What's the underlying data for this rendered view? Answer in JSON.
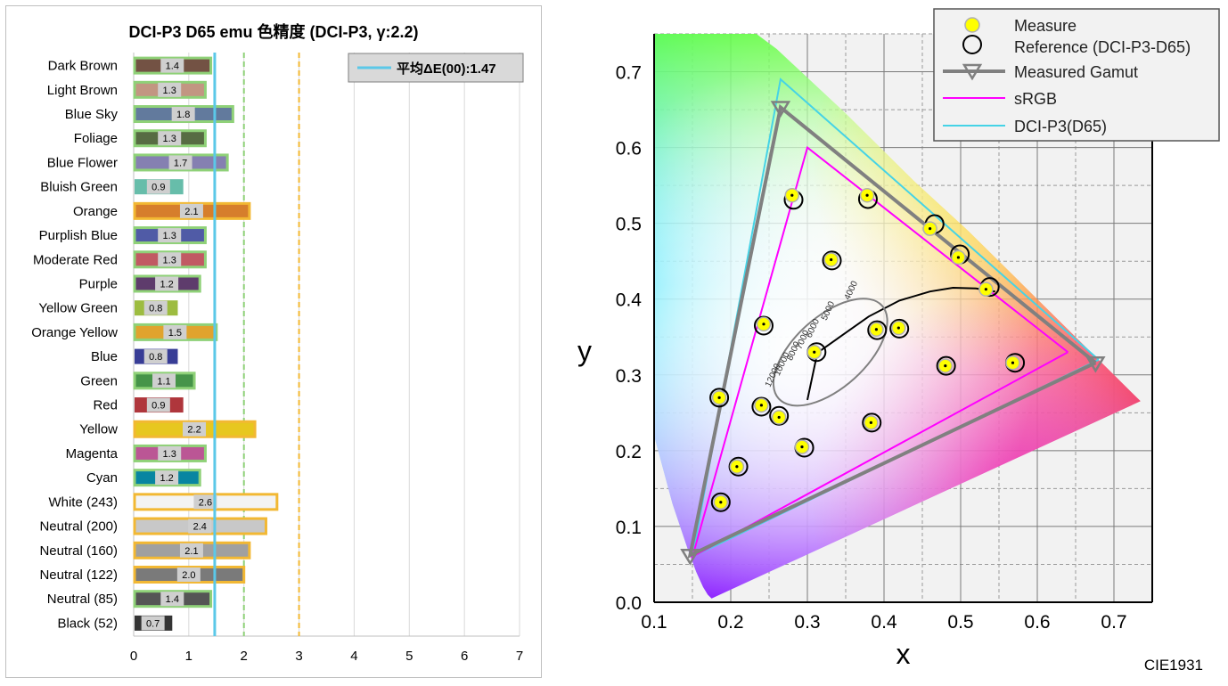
{
  "left_chart": {
    "title": "DCI-P3 D65 emu 色精度 (DCI-P3, γ:2.2)",
    "legend_label": "平均ΔE(00):1.47"
  },
  "right_chart": {
    "caption": "CIE1931"
  },
  "chart_data": [
    {
      "type": "bar",
      "orientation": "horizontal",
      "title": "DCI-P3 D65 emu 色精度 (DCI-P3, γ:2.2)",
      "xlim": [
        0,
        7
      ],
      "xticks": [
        "0",
        "1",
        "2",
        "3",
        "4",
        "5",
        "6",
        "7"
      ],
      "grid": true,
      "legend_position": "top-right",
      "average": {
        "label": "平均ΔE(00):1.47",
        "value": 1.47,
        "color": "#5bc8e8"
      },
      "reference_lines": [
        {
          "value": 2,
          "color": "#8fd178",
          "style": "dashed"
        },
        {
          "value": 3,
          "color": "#f2b833",
          "style": "dashed"
        }
      ],
      "categories": [
        "Dark Brown",
        "Light Brown",
        "Blue Sky",
        "Foliage",
        "Blue Flower",
        "Bluish Green",
        "Orange",
        "Purplish Blue",
        "Moderate Red",
        "Purple",
        "Yellow Green",
        "Orange Yellow",
        "Blue",
        "Green",
        "Red",
        "Yellow",
        "Magenta",
        "Cyan",
        "White (243)",
        "Neutral (200)",
        "Neutral (160)",
        "Neutral (122)",
        "Neutral (85)",
        "Black (52)"
      ],
      "values": [
        1.4,
        1.3,
        1.8,
        1.3,
        1.7,
        0.9,
        2.1,
        1.3,
        1.3,
        1.2,
        0.8,
        1.5,
        0.8,
        1.1,
        0.9,
        2.2,
        1.3,
        1.2,
        2.6,
        2.4,
        2.1,
        2.0,
        1.4,
        0.7
      ],
      "value_labels": [
        "1.4",
        "1.3",
        "1.8",
        "1.3",
        "1.7",
        "0.9",
        "2.1",
        "1.3",
        "1.3",
        "1.2",
        "0.8",
        "1.5",
        "0.8",
        "1.1",
        "0.9",
        "2.2",
        "1.3",
        "1.2",
        "2.6",
        "2.4",
        "2.1",
        "2.0",
        "1.4",
        "0.7"
      ],
      "bar_colors": [
        "#735244",
        "#c29682",
        "#627a9d",
        "#576c43",
        "#8580b1",
        "#67bdaa",
        "#d67e2c",
        "#505ba6",
        "#c15a63",
        "#5e3c6c",
        "#9dbc40",
        "#e0a32e",
        "#383d96",
        "#469449",
        "#af363c",
        "#e7c71f",
        "#bb5695",
        "#0885a1",
        "#f3f3f3",
        "#c8c8c8",
        "#a0a0a0",
        "#7a7a7a",
        "#555555",
        "#343434"
      ],
      "border_colors": [
        "#8fd178",
        "#8fd178",
        "#8fd178",
        "#8fd178",
        "#8fd178",
        "",
        "#f2b833",
        "#8fd178",
        "#8fd178",
        "#8fd178",
        "",
        "#8fd178",
        "",
        "#8fd178",
        "",
        "#f2b833",
        "#8fd178",
        "#8fd178",
        "#f2b833",
        "#f2b833",
        "#f2b833",
        "#f2b833",
        "#8fd178",
        ""
      ]
    },
    {
      "type": "scatter",
      "title": "",
      "caption": "CIE1931",
      "xlabel": "x",
      "ylabel": "y",
      "xlim": [
        0.1,
        0.75
      ],
      "ylim": [
        0.0,
        0.75
      ],
      "xticks": [
        "0.1",
        "0.2",
        "0.3",
        "0.4",
        "0.5",
        "0.6",
        "0.7"
      ],
      "yticks": [
        "0.0",
        "0.1",
        "0.2",
        "0.3",
        "0.4",
        "0.5",
        "0.6",
        "0.7"
      ],
      "grid": true,
      "legend_position": "top-right",
      "legend": [
        "Measure",
        "Reference (DCI-P3-D65)",
        "Measured Gamut",
        "sRGB",
        "DCI-P3(D65)"
      ],
      "series": [
        {
          "name": "Measure",
          "color": "#ffff00",
          "points": [
            [
              0.187,
              0.132
            ],
            [
              0.208,
              0.179
            ],
            [
              0.293,
              0.205
            ],
            [
              0.383,
              0.237
            ],
            [
              0.263,
              0.244
            ],
            [
              0.24,
              0.26
            ],
            [
              0.185,
              0.27
            ],
            [
              0.309,
              0.33
            ],
            [
              0.48,
              0.312
            ],
            [
              0.568,
              0.316
            ],
            [
              0.39,
              0.36
            ],
            [
              0.419,
              0.362
            ],
            [
              0.243,
              0.367
            ],
            [
              0.331,
              0.452
            ],
            [
              0.533,
              0.413
            ],
            [
              0.497,
              0.455
            ],
            [
              0.46,
              0.493
            ],
            [
              0.28,
              0.537
            ],
            [
              0.378,
              0.537
            ]
          ]
        },
        {
          "name": "Reference (DCI-P3-D65)",
          "color": "#000000",
          "points": [
            [
              0.187,
              0.132
            ],
            [
              0.21,
              0.179
            ],
            [
              0.296,
              0.204
            ],
            [
              0.384,
              0.237
            ],
            [
              0.263,
              0.246
            ],
            [
              0.24,
              0.258
            ],
            [
              0.185,
              0.27
            ],
            [
              0.312,
              0.33
            ],
            [
              0.481,
              0.312
            ],
            [
              0.571,
              0.316
            ],
            [
              0.391,
              0.359
            ],
            [
              0.42,
              0.361
            ],
            [
              0.243,
              0.365
            ],
            [
              0.332,
              0.451
            ],
            [
              0.538,
              0.416
            ],
            [
              0.499,
              0.459
            ],
            [
              0.466,
              0.499
            ],
            [
              0.282,
              0.531
            ],
            [
              0.379,
              0.532
            ]
          ]
        },
        {
          "name": "Measured Gamut",
          "color": "#808080",
          "points": [
            [
              0.676,
              0.316
            ],
            [
              0.265,
              0.653
            ],
            [
              0.147,
              0.062
            ],
            [
              0.676,
              0.316
            ]
          ]
        },
        {
          "name": "sRGB",
          "color": "#ff00ff",
          "points": [
            [
              0.64,
              0.33
            ],
            [
              0.3,
              0.6
            ],
            [
              0.15,
              0.06
            ],
            [
              0.64,
              0.33
            ]
          ]
        },
        {
          "name": "DCI-P3(D65)",
          "color": "#45d3e6",
          "points": [
            [
              0.68,
              0.32
            ],
            [
              0.265,
              0.69
            ],
            [
              0.15,
              0.06
            ],
            [
              0.68,
              0.32
            ]
          ]
        }
      ],
      "planckian_labels": [
        "4000",
        "5000",
        "6000",
        "7000",
        "8000",
        "10000",
        "12000"
      ]
    }
  ]
}
